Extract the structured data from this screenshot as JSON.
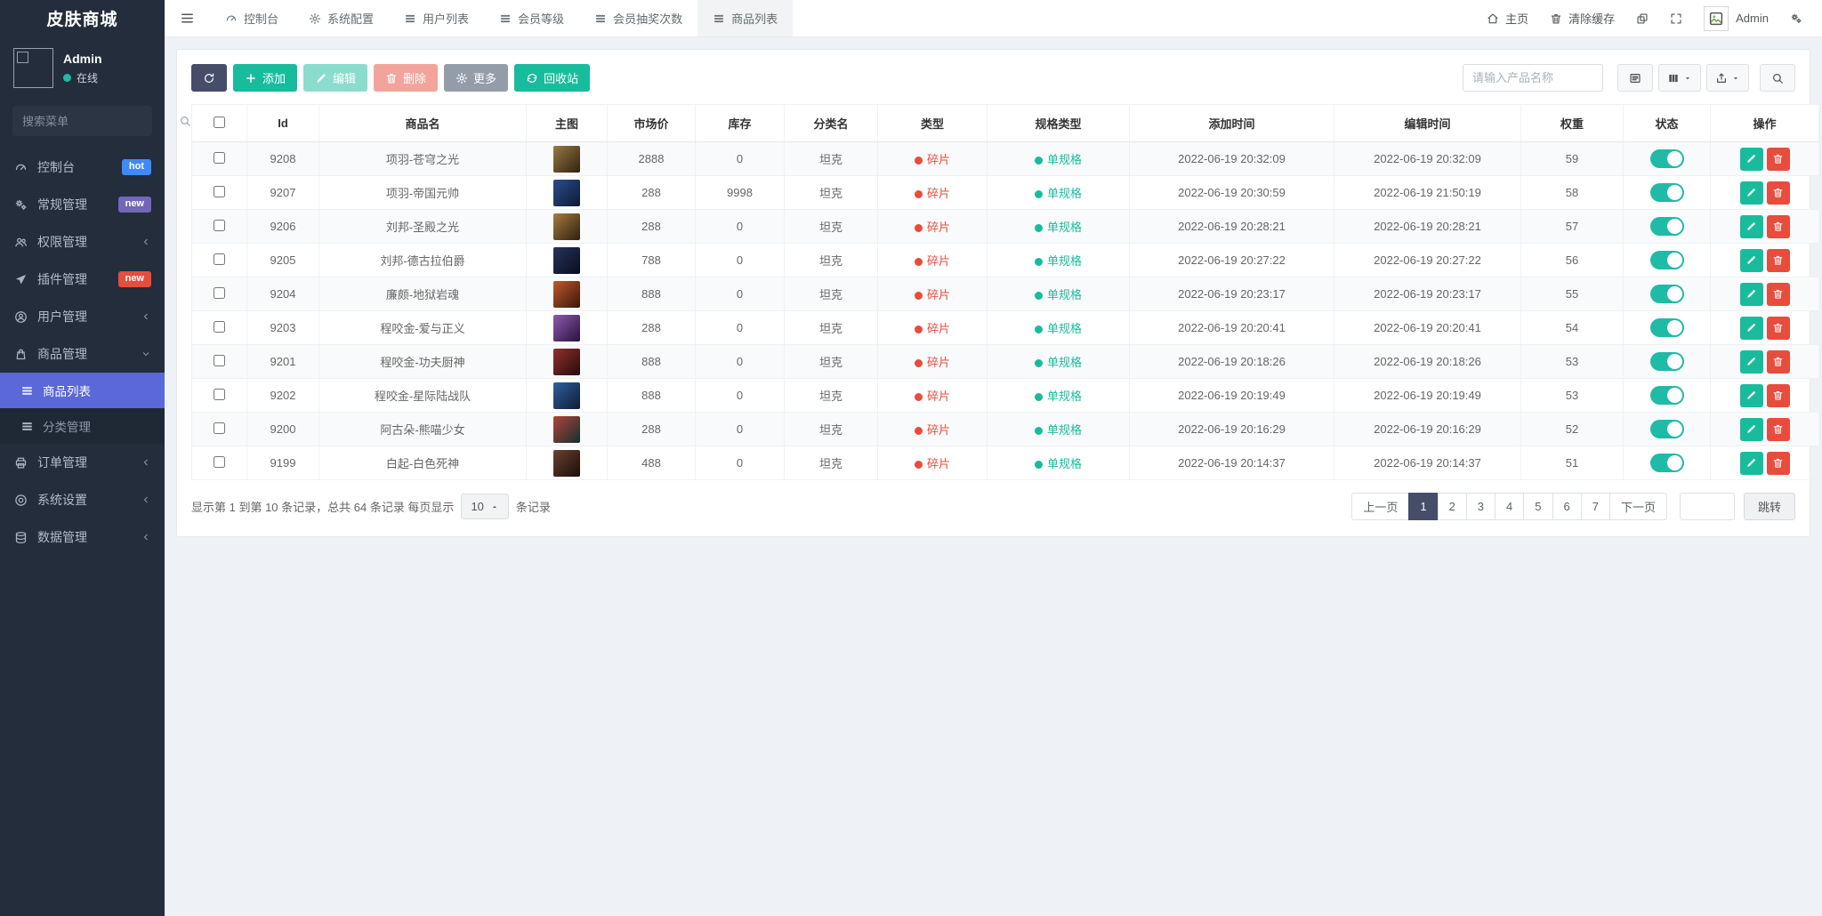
{
  "app": {
    "brand": "皮肤商城"
  },
  "colors": {
    "sidebar_bg": "#232d3b",
    "accent_teal": "#18bc9c",
    "danger_red": "#e74c3c",
    "dark_navy": "#454d69",
    "menu_active_blue": "#5a68d8",
    "toggle_on": "#1fbba6",
    "badge_hot_blue": "#3d8af8",
    "badge_new_purple": "#7266ba",
    "badge_new_red": "#e74c3c"
  },
  "sidebar": {
    "user": {
      "name": "Admin",
      "status": "在线"
    },
    "search_placeholder": "搜索菜单",
    "items": [
      {
        "key": "console",
        "label": "控制台",
        "icon": "dashboard-icon",
        "badge": "hot",
        "badge_color": "#3d8af8"
      },
      {
        "key": "general",
        "label": "常规管理",
        "icon": "gears-icon",
        "badge": "new",
        "badge_color": "#7266ba"
      },
      {
        "key": "auth",
        "label": "权限管理",
        "icon": "users-icon",
        "chevron": "left"
      },
      {
        "key": "addon",
        "label": "插件管理",
        "icon": "plane-icon",
        "badge": "new",
        "badge_color": "#e74c3c"
      },
      {
        "key": "user",
        "label": "用户管理",
        "icon": "user-icon",
        "chevron": "left"
      },
      {
        "key": "goods",
        "label": "商品管理",
        "icon": "shop-icon",
        "chevron": "down",
        "expanded": true,
        "children": [
          {
            "key": "goods-list",
            "label": "商品列表",
            "icon": "table-icon",
            "active": true
          },
          {
            "key": "category",
            "label": "分类管理",
            "icon": "table-icon"
          }
        ]
      },
      {
        "key": "order",
        "label": "订单管理",
        "icon": "printer-icon",
        "chevron": "left"
      },
      {
        "key": "system",
        "label": "系统设置",
        "icon": "settings-icon",
        "chevron": "left"
      },
      {
        "key": "data",
        "label": "数据管理",
        "icon": "database-icon",
        "chevron": "left"
      }
    ]
  },
  "topbar": {
    "tabs": [
      {
        "key": "console",
        "label": "控制台",
        "icon": "dashboard-icon"
      },
      {
        "key": "config",
        "label": "系统配置",
        "icon": "gear-icon"
      },
      {
        "key": "user-list",
        "label": "用户列表",
        "icon": "table-icon"
      },
      {
        "key": "vip-level",
        "label": "会员等级",
        "icon": "table-icon"
      },
      {
        "key": "lottery-times",
        "label": "会员抽奖次数",
        "icon": "table-icon"
      },
      {
        "key": "goods-list",
        "label": "商品列表",
        "icon": "table-icon",
        "active": true
      }
    ],
    "home_label": "主页",
    "clear_cache_label": "清除缓存",
    "user_label": "Admin"
  },
  "toolbar": {
    "buttons": [
      {
        "key": "refresh",
        "label": "",
        "icon": "refresh-icon",
        "style": "dark"
      },
      {
        "key": "add",
        "label": "添加",
        "icon": "plus-icon",
        "style": "success"
      },
      {
        "key": "edit",
        "label": "编辑",
        "icon": "pencil-icon",
        "style": "success",
        "disabled": true
      },
      {
        "key": "delete",
        "label": "删除",
        "icon": "trash-icon",
        "style": "danger",
        "disabled": true
      },
      {
        "key": "more",
        "label": "更多",
        "icon": "gear-icon",
        "style": "gray"
      },
      {
        "key": "recyclebin",
        "label": "回收站",
        "icon": "recycle-icon",
        "style": "success"
      }
    ],
    "search_placeholder": "请输入产品名称"
  },
  "table": {
    "columns": [
      "Id",
      "商品名",
      "主图",
      "市场价",
      "库存",
      "分类名",
      "类型",
      "规格类型",
      "添加时间",
      "编辑时间",
      "权重",
      "状态",
      "操作"
    ],
    "rows": [
      {
        "id": "9208",
        "name": "项羽-苍穹之光",
        "price": "2888",
        "stock": "0",
        "category": "坦克",
        "type": "碎片",
        "spec": "单规格",
        "created": "2022-06-19 20:32:09",
        "updated": "2022-06-19 20:32:09",
        "weight": "59",
        "status": "on",
        "thumb": [
          "#9a7a42",
          "#2e2212"
        ]
      },
      {
        "id": "9207",
        "name": "项羽-帝国元帅",
        "price": "288",
        "stock": "9998",
        "category": "坦克",
        "type": "碎片",
        "spec": "单规格",
        "created": "2022-06-19 20:30:59",
        "updated": "2022-06-19 21:50:19",
        "weight": "58",
        "status": "on",
        "thumb": [
          "#2a4d8f",
          "#0e1a30"
        ]
      },
      {
        "id": "9206",
        "name": "刘邦-圣殿之光",
        "price": "288",
        "stock": "0",
        "category": "坦克",
        "type": "碎片",
        "spec": "单规格",
        "created": "2022-06-19 20:28:21",
        "updated": "2022-06-19 20:28:21",
        "weight": "57",
        "status": "on",
        "thumb": [
          "#a87c3f",
          "#2e1f10"
        ]
      },
      {
        "id": "9205",
        "name": "刘邦-德古拉伯爵",
        "price": "788",
        "stock": "0",
        "category": "坦克",
        "type": "碎片",
        "spec": "单规格",
        "created": "2022-06-19 20:27:22",
        "updated": "2022-06-19 20:27:22",
        "weight": "56",
        "status": "on",
        "thumb": [
          "#27335e",
          "#090d1a"
        ]
      },
      {
        "id": "9204",
        "name": "廉颇-地狱岩魂",
        "price": "888",
        "stock": "0",
        "category": "坦克",
        "type": "碎片",
        "spec": "单规格",
        "created": "2022-06-19 20:23:17",
        "updated": "2022-06-19 20:23:17",
        "weight": "55",
        "status": "on",
        "thumb": [
          "#c05a2a",
          "#3a150a"
        ]
      },
      {
        "id": "9203",
        "name": "程咬金-爱与正义",
        "price": "288",
        "stock": "0",
        "category": "坦克",
        "type": "碎片",
        "spec": "单规格",
        "created": "2022-06-19 20:20:41",
        "updated": "2022-06-19 20:20:41",
        "weight": "54",
        "status": "on",
        "thumb": [
          "#8f5ab0",
          "#27123d"
        ]
      },
      {
        "id": "9201",
        "name": "程咬金-功夫厨神",
        "price": "888",
        "stock": "0",
        "category": "坦克",
        "type": "碎片",
        "spec": "单规格",
        "created": "2022-06-19 20:18:26",
        "updated": "2022-06-19 20:18:26",
        "weight": "53",
        "status": "on",
        "thumb": [
          "#93302c",
          "#240c0c"
        ]
      },
      {
        "id": "9202",
        "name": "程咬金-星际陆战队",
        "price": "888",
        "stock": "0",
        "category": "坦克",
        "type": "碎片",
        "spec": "单规格",
        "created": "2022-06-19 20:19:49",
        "updated": "2022-06-19 20:19:49",
        "weight": "53",
        "status": "on",
        "thumb": [
          "#2f5fa0",
          "#0e1c34"
        ]
      },
      {
        "id": "9200",
        "name": "阿古朵-熊喵少女",
        "price": "288",
        "stock": "0",
        "category": "坦克",
        "type": "碎片",
        "spec": "单规格",
        "created": "2022-06-19 20:16:29",
        "updated": "2022-06-19 20:16:29",
        "weight": "52",
        "status": "on",
        "thumb": [
          "#b4433a",
          "#12302e"
        ]
      },
      {
        "id": "9199",
        "name": "白起-白色死神",
        "price": "488",
        "stock": "0",
        "category": "坦克",
        "type": "碎片",
        "spec": "单规格",
        "created": "2022-06-19 20:14:37",
        "updated": "2022-06-19 20:14:37",
        "weight": "51",
        "status": "on",
        "thumb": [
          "#6e4030",
          "#190d08"
        ]
      }
    ]
  },
  "footer": {
    "summary_prefix": "显示第 1 到第 10 条记录，总共 64 条记录 每页显示",
    "page_size": "10",
    "summary_suffix": "条记录",
    "prev_label": "上一页",
    "next_label": "下一页",
    "pages": [
      "1",
      "2",
      "3",
      "4",
      "5",
      "6",
      "7"
    ],
    "active_page": "1",
    "jump_label": "跳转"
  }
}
